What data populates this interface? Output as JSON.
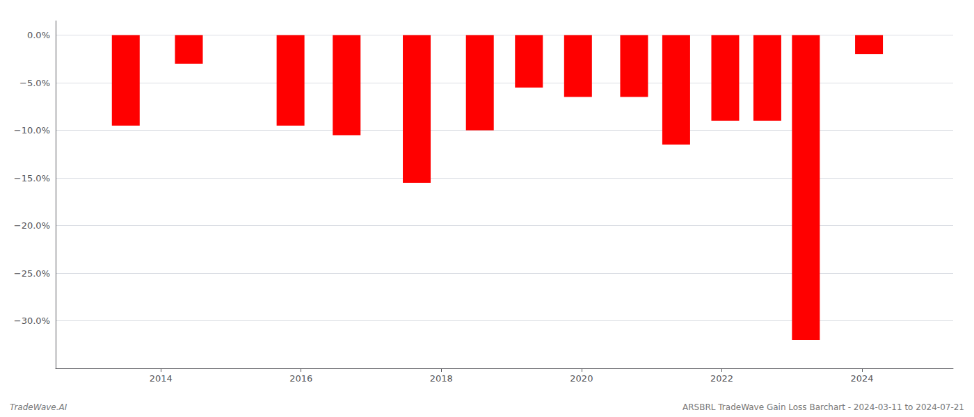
{
  "chart_data": {
    "type": "bar",
    "x": [
      2013.5,
      2014.4,
      2015.85,
      2016.65,
      2017.65,
      2018.55,
      2019.25,
      2019.95,
      2020.75,
      2021.35,
      2022.05,
      2022.65,
      2023.2,
      2024.1
    ],
    "values": [
      -9.5,
      -3.0,
      -9.5,
      -10.5,
      -15.5,
      -10.0,
      -5.5,
      -6.5,
      -6.5,
      -11.5,
      -9.0,
      -9.0,
      -32.0,
      -2.0
    ],
    "color": "#ff0000",
    "xlim": [
      2012.5,
      2025.3
    ],
    "xticks": [
      2014,
      2016,
      2018,
      2020,
      2022,
      2024
    ],
    "ylim": [
      -35,
      1.5
    ],
    "yticks": [
      {
        "value": 0.0,
        "label": "0.0%"
      },
      {
        "value": -5.0,
        "label": "−5.0%"
      },
      {
        "value": -10.0,
        "label": "−10.0%"
      },
      {
        "value": -15.0,
        "label": "−15.0%"
      },
      {
        "value": -20.0,
        "label": "−20.0%"
      },
      {
        "value": -25.0,
        "label": "−25.0%"
      },
      {
        "value": -30.0,
        "label": "−30.0%"
      }
    ],
    "grid": true,
    "annotations": [
      "TradeWave.AI",
      "ARSBRL TradeWave Gain Loss Barchart - 2024-03-11 to 2024-07-21"
    ]
  }
}
